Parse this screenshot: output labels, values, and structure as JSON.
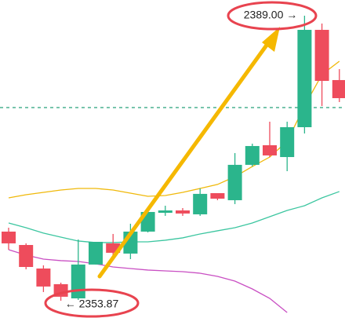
{
  "chart_data": {
    "type": "candlestick",
    "ylim": [
      2351.74,
      2390.94
    ],
    "up_color": "#2bb58c",
    "down_color": "#ee4c5c",
    "candles": {
      "open": [
        2362.39,
        2360.74,
        2357.84,
        2355.91,
        2354.16,
        2358.33,
        2360.94,
        2359.68,
        2362.39,
        2364.71,
        2365.0,
        2364.52,
        2367.13,
        2366.26,
        2370.62,
        2373.04,
        2371.58,
        2375.26,
        2387.26,
        2381.07
      ],
      "high": [
        2362.87,
        2360.94,
        2358.23,
        2356.1,
        2361.42,
        2361.13,
        2362.1,
        2363.36,
        2365.29,
        2365.58,
        2365.29,
        2367.71,
        2367.13,
        2372.07,
        2373.23,
        2375.94,
        2375.94,
        2389.0,
        2388.04,
        2382.42
      ],
      "low": [
        2360.16,
        2357.74,
        2354.94,
        2353.87,
        2353.97,
        2358.33,
        2359.0,
        2359.0,
        2362.29,
        2364.33,
        2364.33,
        2364.33,
        2366.26,
        2365.78,
        2370.42,
        2371.58,
        2369.84,
        2374.49,
        2377.87,
        2378.36
      ],
      "close": [
        2360.94,
        2358.03,
        2355.62,
        2354.36,
        2358.33,
        2361.13,
        2359.78,
        2362.39,
        2364.81,
        2365.0,
        2364.62,
        2367.04,
        2366.45,
        2370.62,
        2372.94,
        2371.78,
        2375.26,
        2387.26,
        2380.97,
        2378.84
      ]
    },
    "lines": [
      {
        "color": "#f0b90b",
        "values": [
          2366.55,
          2366.94,
          2367.23,
          2367.52,
          2367.71,
          2367.71,
          2367.52,
          2367.13,
          2366.74,
          2366.84,
          2367.23,
          2367.71,
          2368.2,
          2369.16,
          2370.42,
          2371.58,
          2373.52,
          2377.87,
          2381.75,
          2383.39
        ]
      },
      {
        "color": "#3cc6a0",
        "values": [
          2363.45,
          2362.87,
          2362.2,
          2361.71,
          2361.23,
          2361.04,
          2361.04,
          2361.13,
          2361.13,
          2361.33,
          2361.62,
          2362.1,
          2362.49,
          2362.87,
          2363.45,
          2364.23,
          2365.0,
          2365.58,
          2366.55,
          2367.33
        ]
      },
      {
        "color": "#c94fc3",
        "values": [
          2360.16,
          2359.49,
          2359.0,
          2358.81,
          2358.71,
          2358.42,
          2358.03,
          2357.84,
          2357.65,
          2357.55,
          2357.45,
          2357.26,
          2356.87,
          2356.29,
          2355.32,
          2354.16,
          2352.42,
          null,
          null,
          null
        ]
      }
    ],
    "reference_line": {
      "value": 2377.68,
      "color": "#26a17b"
    },
    "annotations": [
      {
        "text": "2389.00 →"
      },
      {
        "text": "← 2353.87"
      }
    ]
  }
}
